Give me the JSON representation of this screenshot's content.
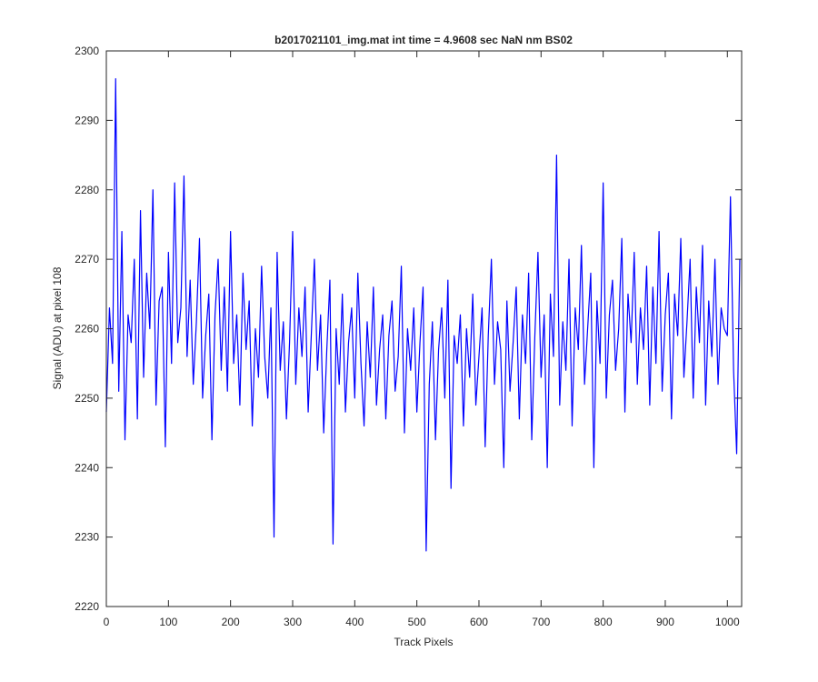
{
  "chart_data": {
    "type": "line",
    "title": "b2017021101_img.mat int time = 4.9608 sec  NaN nm BS02",
    "xlabel": "Track Pixels",
    "ylabel": "Signal (ADU) at pixel 108",
    "color": "#0000ff",
    "grid": false,
    "xlim": [
      0,
      1023
    ],
    "ylim": [
      2220,
      2300
    ],
    "xticks": [
      0,
      100,
      200,
      300,
      400,
      500,
      600,
      700,
      800,
      900,
      1000
    ],
    "yticks": [
      2220,
      2230,
      2240,
      2250,
      2260,
      2270,
      2280,
      2290,
      2300
    ],
    "x": [
      0,
      5,
      10,
      15,
      20,
      25,
      30,
      35,
      40,
      45,
      50,
      55,
      60,
      65,
      70,
      75,
      80,
      85,
      90,
      95,
      100,
      105,
      110,
      115,
      120,
      125,
      130,
      135,
      140,
      145,
      150,
      155,
      160,
      165,
      170,
      175,
      180,
      185,
      190,
      195,
      200,
      205,
      210,
      215,
      220,
      225,
      230,
      235,
      240,
      245,
      250,
      255,
      260,
      265,
      270,
      275,
      280,
      285,
      290,
      295,
      300,
      305,
      310,
      315,
      320,
      325,
      330,
      335,
      340,
      345,
      350,
      355,
      360,
      365,
      370,
      375,
      380,
      385,
      390,
      395,
      400,
      405,
      410,
      415,
      420,
      425,
      430,
      435,
      440,
      445,
      450,
      455,
      460,
      465,
      470,
      475,
      480,
      485,
      490,
      495,
      500,
      505,
      510,
      515,
      520,
      525,
      530,
      535,
      540,
      545,
      550,
      555,
      560,
      565,
      570,
      575,
      580,
      585,
      590,
      595,
      600,
      605,
      610,
      615,
      620,
      625,
      630,
      635,
      640,
      645,
      650,
      655,
      660,
      665,
      670,
      675,
      680,
      685,
      690,
      695,
      700,
      705,
      710,
      715,
      720,
      725,
      730,
      735,
      740,
      745,
      750,
      755,
      760,
      765,
      770,
      775,
      780,
      785,
      790,
      795,
      800,
      805,
      810,
      815,
      820,
      825,
      830,
      835,
      840,
      845,
      850,
      855,
      860,
      865,
      870,
      875,
      880,
      885,
      890,
      895,
      900,
      905,
      910,
      915,
      920,
      925,
      930,
      935,
      940,
      945,
      950,
      955,
      960,
      965,
      970,
      975,
      980,
      985,
      990,
      995,
      1000,
      1005,
      1010,
      1015,
      1020
    ],
    "values": [
      2248,
      2263,
      2255,
      2296,
      2251,
      2274,
      2244,
      2262,
      2258,
      2270,
      2247,
      2277,
      2253,
      2268,
      2260,
      2280,
      2249,
      2264,
      2266,
      2243,
      2271,
      2255,
      2281,
      2258,
      2263,
      2282,
      2256,
      2267,
      2252,
      2261,
      2273,
      2250,
      2259,
      2265,
      2244,
      2262,
      2270,
      2254,
      2266,
      2251,
      2274,
      2255,
      2262,
      2249,
      2268,
      2257,
      2264,
      2246,
      2260,
      2253,
      2269,
      2256,
      2250,
      2263,
      2230,
      2271,
      2254,
      2261,
      2247,
      2258,
      2274,
      2252,
      2263,
      2256,
      2266,
      2248,
      2259,
      2270,
      2254,
      2262,
      2245,
      2257,
      2267,
      2229,
      2260,
      2252,
      2265,
      2248,
      2258,
      2263,
      2250,
      2268,
      2255,
      2246,
      2261,
      2253,
      2266,
      2249,
      2257,
      2262,
      2247,
      2259,
      2264,
      2251,
      2256,
      2269,
      2245,
      2260,
      2254,
      2263,
      2248,
      2258,
      2266,
      2228,
      2252,
      2261,
      2244,
      2257,
      2263,
      2250,
      2267,
      2237,
      2259,
      2255,
      2262,
      2246,
      2260,
      2253,
      2265,
      2249,
      2256,
      2263,
      2243,
      2259,
      2270,
      2252,
      2261,
      2257,
      2240,
      2264,
      2251,
      2258,
      2266,
      2247,
      2262,
      2255,
      2268,
      2244,
      2259,
      2271,
      2253,
      2262,
      2240,
      2265,
      2256,
      2285,
      2249,
      2261,
      2254,
      2270,
      2246,
      2263,
      2257,
      2272,
      2252,
      2260,
      2268,
      2240,
      2264,
      2255,
      2281,
      2250,
      2262,
      2267,
      2254,
      2260,
      2273,
      2248,
      2265,
      2258,
      2271,
      2252,
      2263,
      2257,
      2269,
      2249,
      2266,
      2255,
      2274,
      2251,
      2262,
      2268,
      2247,
      2265,
      2259,
      2273,
      2253,
      2261,
      2270,
      2250,
      2266,
      2258,
      2272,
      2249,
      2264,
      2256,
      2270,
      2252,
      2263,
      2260,
      2259,
      2279,
      2254,
      2242,
      2270
    ]
  }
}
